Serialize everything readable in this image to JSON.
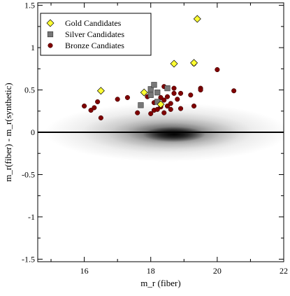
{
  "chart_data": {
    "type": "scatter",
    "xlabel": "m_r (fiber)",
    "ylabel": "m_r(fiber) - m_r(synthetic)",
    "xlim": [
      14.6,
      22.0
    ],
    "ylim": [
      -1.53,
      1.53
    ],
    "x_ticks": [
      16,
      18,
      20,
      22
    ],
    "y_ticks": [
      -1.5,
      -1,
      -0.5,
      0,
      0.5,
      1,
      1.5
    ],
    "x_tick_labels": [
      "16",
      "18",
      "20",
      "22"
    ],
    "y_tick_labels": [
      "-1.5",
      "-1",
      "-0.5",
      "0",
      "0.5",
      "1",
      "1.5"
    ],
    "reference_line_y": 0,
    "background_density": "grey density of the full sample, concentrated near x = 18.7, y = 0",
    "legend": {
      "position": "top-left"
    },
    "series": [
      {
        "name": "Gold Candidates",
        "marker": "diamond",
        "color": "#ffff33",
        "points": [
          [
            16.5,
            0.49
          ],
          [
            17.8,
            0.47
          ],
          [
            18.3,
            0.33
          ],
          [
            18.7,
            0.81
          ],
          [
            19.3,
            0.82
          ],
          [
            19.4,
            1.34
          ]
        ]
      },
      {
        "name": "Silver Candidates",
        "marker": "square",
        "color": "#777777",
        "points": [
          [
            17.7,
            0.32
          ],
          [
            18.0,
            0.51
          ],
          [
            18.1,
            0.56
          ],
          [
            18.0,
            0.44
          ],
          [
            18.2,
            0.47
          ],
          [
            18.2,
            0.36
          ],
          [
            18.5,
            0.52
          ]
        ]
      },
      {
        "name": "Bronze Candiates",
        "marker": "circle",
        "color": "#800000",
        "points": [
          [
            16.0,
            0.31
          ],
          [
            16.2,
            0.26
          ],
          [
            16.3,
            0.29
          ],
          [
            16.4,
            0.36
          ],
          [
            16.5,
            0.17
          ],
          [
            17.0,
            0.39
          ],
          [
            17.3,
            0.41
          ],
          [
            17.6,
            0.23
          ],
          [
            17.8,
            0.47
          ],
          [
            17.9,
            0.42
          ],
          [
            18.0,
            0.22
          ],
          [
            18.1,
            0.26
          ],
          [
            18.1,
            0.35
          ],
          [
            18.2,
            0.27
          ],
          [
            18.3,
            0.3
          ],
          [
            18.3,
            0.41
          ],
          [
            18.4,
            0.38
          ],
          [
            18.4,
            0.23
          ],
          [
            18.4,
            0.54
          ],
          [
            18.5,
            0.42
          ],
          [
            18.5,
            0.31
          ],
          [
            18.6,
            0.34
          ],
          [
            18.6,
            0.27
          ],
          [
            18.7,
            0.52
          ],
          [
            18.7,
            0.46
          ],
          [
            18.8,
            0.39
          ],
          [
            18.9,
            0.46
          ],
          [
            18.9,
            0.28
          ],
          [
            19.2,
            0.44
          ],
          [
            19.3,
            0.81
          ],
          [
            19.3,
            0.31
          ],
          [
            19.5,
            0.52
          ],
          [
            19.5,
            0.5
          ],
          [
            20.0,
            0.74
          ],
          [
            20.5,
            0.49
          ]
        ]
      }
    ]
  }
}
